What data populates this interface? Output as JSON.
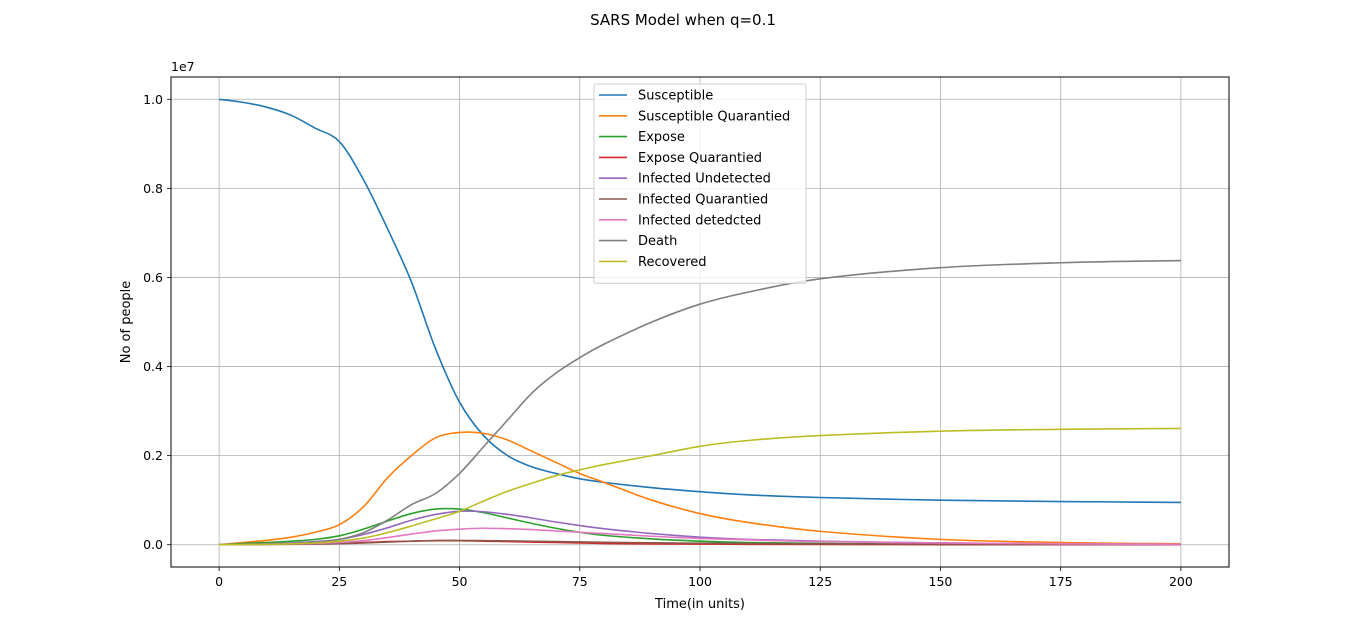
{
  "chart_data": {
    "type": "line",
    "title": "SARS Model when q=0.1",
    "xlabel": "Time(in units)",
    "ylabel": "No of people",
    "y_offset_label": "1e7",
    "xlim": [
      -10,
      210
    ],
    "ylim": [
      -0.05,
      1.05
    ],
    "x_ticks": [
      0,
      25,
      50,
      75,
      100,
      125,
      150,
      175,
      200
    ],
    "x_tick_labels": [
      "0",
      "25",
      "50",
      "75",
      "100",
      "125",
      "150",
      "175",
      "200"
    ],
    "y_ticks": [
      0.0,
      0.2,
      0.4,
      0.6,
      0.8,
      1.0
    ],
    "y_tick_labels": [
      "0.0",
      "0.2",
      "0.4",
      "0.6",
      "0.8",
      "1.0"
    ],
    "grid": true,
    "legend_position": "top-center",
    "x": [
      0,
      5,
      10,
      15,
      20,
      25,
      30,
      35,
      40,
      45,
      50,
      55,
      60,
      65,
      70,
      75,
      80,
      90,
      100,
      110,
      125,
      150,
      175,
      200
    ],
    "series": [
      {
        "name": "Susceptible",
        "color": "#1f77b4",
        "values": [
          1.0,
          0.993,
          0.982,
          0.964,
          0.935,
          0.905,
          0.82,
          0.71,
          0.59,
          0.44,
          0.32,
          0.245,
          0.2,
          0.175,
          0.16,
          0.148,
          0.14,
          0.128,
          0.119,
          0.112,
          0.106,
          0.1,
          0.097,
          0.095
        ]
      },
      {
        "name": "Susceptible Quarantied",
        "color": "#ff7f0e",
        "values": [
          0.0,
          0.005,
          0.01,
          0.017,
          0.028,
          0.045,
          0.085,
          0.15,
          0.2,
          0.24,
          0.252,
          0.25,
          0.235,
          0.21,
          0.185,
          0.16,
          0.14,
          0.1,
          0.07,
          0.05,
          0.03,
          0.012,
          0.005,
          0.002
        ]
      },
      {
        "name": "Expose",
        "color": "#2ca02c",
        "values": [
          0.0,
          0.003,
          0.005,
          0.008,
          0.012,
          0.02,
          0.035,
          0.053,
          0.07,
          0.08,
          0.08,
          0.072,
          0.06,
          0.048,
          0.037,
          0.028,
          0.021,
          0.013,
          0.008,
          0.005,
          0.003,
          0.001,
          0.0005,
          0.0002
        ]
      },
      {
        "name": "Expose Quarantied",
        "color": "#d62728",
        "values": [
          0.0,
          0.0005,
          0.001,
          0.002,
          0.003,
          0.004,
          0.005,
          0.007,
          0.008,
          0.009,
          0.009,
          0.008,
          0.007,
          0.006,
          0.005,
          0.004,
          0.003,
          0.002,
          0.0015,
          0.001,
          0.0005,
          0.0002,
          0.0001,
          0.0
        ]
      },
      {
        "name": "Infected Undetected",
        "color": "#9467bd",
        "values": [
          0.0,
          0.001,
          0.002,
          0.004,
          0.007,
          0.012,
          0.023,
          0.038,
          0.055,
          0.068,
          0.075,
          0.074,
          0.068,
          0.06,
          0.051,
          0.043,
          0.036,
          0.025,
          0.017,
          0.012,
          0.008,
          0.004,
          0.002,
          0.001
        ]
      },
      {
        "name": "Infected Quarantied",
        "color": "#8c564b",
        "values": [
          0.0,
          0.0003,
          0.0006,
          0.001,
          0.0015,
          0.0025,
          0.004,
          0.006,
          0.008,
          0.0095,
          0.0095,
          0.009,
          0.0085,
          0.0078,
          0.007,
          0.0062,
          0.0055,
          0.0043,
          0.0034,
          0.0026,
          0.0018,
          0.001,
          0.0005,
          0.0003
        ]
      },
      {
        "name": "Infected detedcted",
        "color": "#e377c2",
        "values": [
          0.0,
          0.0005,
          0.001,
          0.0017,
          0.003,
          0.005,
          0.009,
          0.016,
          0.024,
          0.031,
          0.035,
          0.037,
          0.036,
          0.034,
          0.031,
          0.028,
          0.025,
          0.019,
          0.014,
          0.011,
          0.007,
          0.004,
          0.002,
          0.001
        ]
      },
      {
        "name": "Death",
        "color": "#7f7f7f",
        "values": [
          0.0,
          0.0005,
          0.001,
          0.002,
          0.005,
          0.012,
          0.027,
          0.055,
          0.09,
          0.115,
          0.16,
          0.22,
          0.28,
          0.34,
          0.385,
          0.42,
          0.45,
          0.5,
          0.54,
          0.567,
          0.597,
          0.622,
          0.633,
          0.638
        ]
      },
      {
        "name": "Recovered",
        "color": "#bcbd22",
        "values": [
          0.0,
          0.0005,
          0.001,
          0.002,
          0.004,
          0.008,
          0.015,
          0.027,
          0.042,
          0.058,
          0.075,
          0.098,
          0.12,
          0.138,
          0.155,
          0.168,
          0.18,
          0.2,
          0.221,
          0.234,
          0.245,
          0.255,
          0.259,
          0.261
        ]
      }
    ]
  }
}
